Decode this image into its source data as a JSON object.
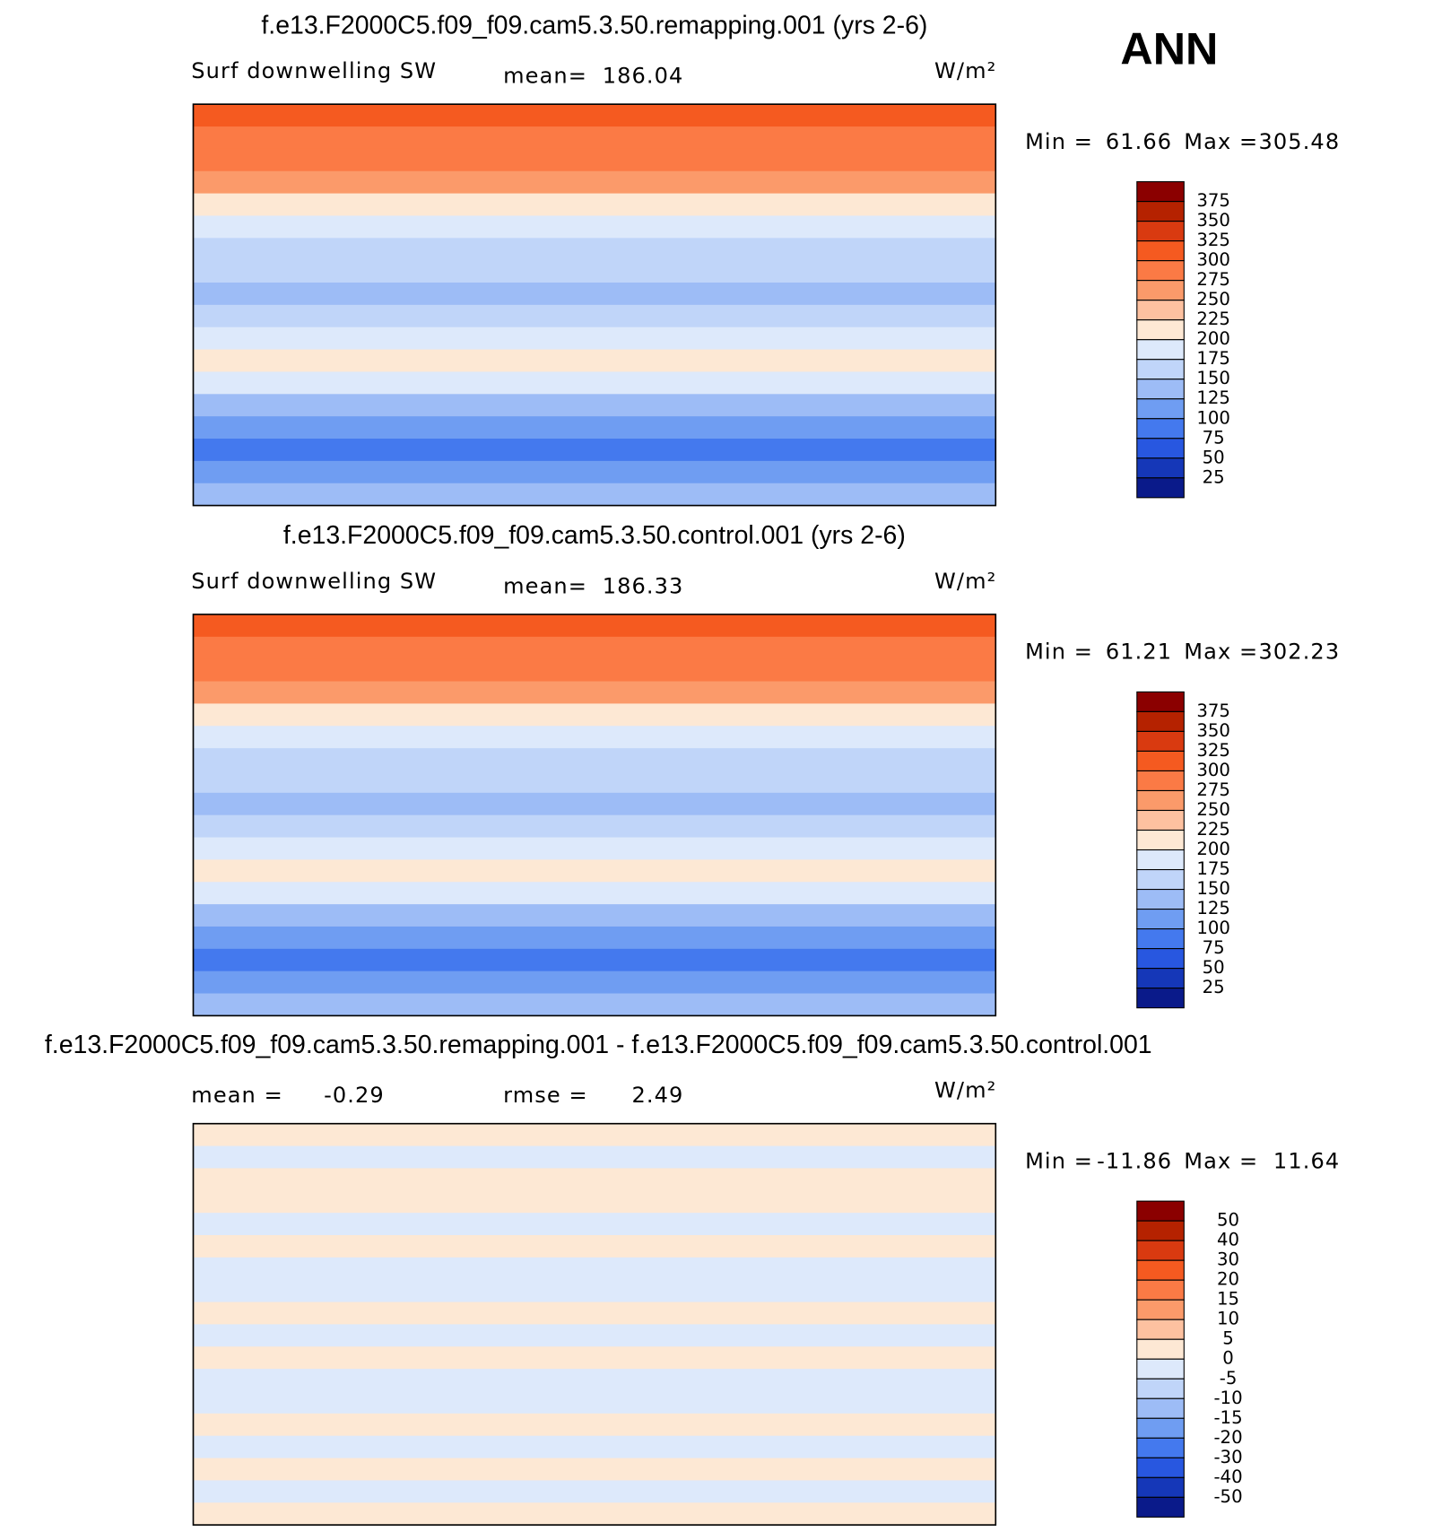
{
  "season": "ANN",
  "panels": [
    {
      "title": "f.e13.F2000C5.f09_f09.cam5.3.50.remapping.001 (yrs 2-6)",
      "variable": "Surf downwelling SW",
      "mean_label": "mean=",
      "mean": 186.04,
      "units": "W/m²",
      "min_label": "Min =",
      "min": 61.66,
      "max_label": "Max =",
      "max": 305.48,
      "levels": [
        375,
        350,
        325,
        300,
        275,
        250,
        225,
        200,
        175,
        150,
        125,
        100,
        75,
        50,
        25
      ],
      "colors": [
        "#8b0000",
        "#b52200",
        "#d93a10",
        "#f55a20",
        "#fb7a45",
        "#fb9a6a",
        "#fdc1a0",
        "#fde8d4",
        "#dde9fb",
        "#c0d5f9",
        "#9dbcf6",
        "#6f9df2",
        "#4479ee",
        "#2857e0",
        "#1537b8",
        "#0a1a8a"
      ]
    },
    {
      "title": "f.e13.F2000C5.f09_f09.cam5.3.50.control.001 (yrs 2-6)",
      "variable": "Surf downwelling SW",
      "mean_label": "mean=",
      "mean": 186.33,
      "units": "W/m²",
      "min_label": "Min =",
      "min": 61.21,
      "max_label": "Max =",
      "max": 302.23,
      "levels": [
        375,
        350,
        325,
        300,
        275,
        250,
        225,
        200,
        175,
        150,
        125,
        100,
        75,
        50,
        25
      ],
      "colors": [
        "#8b0000",
        "#b52200",
        "#d93a10",
        "#f55a20",
        "#fb7a45",
        "#fb9a6a",
        "#fdc1a0",
        "#fde8d4",
        "#dde9fb",
        "#c0d5f9",
        "#9dbcf6",
        "#6f9df2",
        "#4479ee",
        "#2857e0",
        "#1537b8",
        "#0a1a8a"
      ]
    },
    {
      "title": "f.e13.F2000C5.f09_f09.cam5.3.50.remapping.001 - f.e13.F2000C5.f09_f09.cam5.3.50.control.001",
      "mean_label": "mean =",
      "mean": -0.29,
      "rmse_label": "rmse =",
      "rmse": 2.49,
      "units": "W/m²",
      "min_label": "Min =",
      "min": -11.86,
      "max_label": "Max =",
      "max": 11.64,
      "levels": [
        50,
        40,
        30,
        20,
        15,
        10,
        5,
        0,
        -5,
        -10,
        -15,
        -20,
        -30,
        -40,
        -50
      ],
      "colors": [
        "#8b0000",
        "#b52200",
        "#d93a10",
        "#f55a20",
        "#fb7a45",
        "#fb9a6a",
        "#fdc1a0",
        "#fde8d4",
        "#dde9fb",
        "#c0d5f9",
        "#9dbcf6",
        "#6f9df2",
        "#4479ee",
        "#2857e0",
        "#1537b8",
        "#0a1a8a"
      ]
    }
  ]
}
